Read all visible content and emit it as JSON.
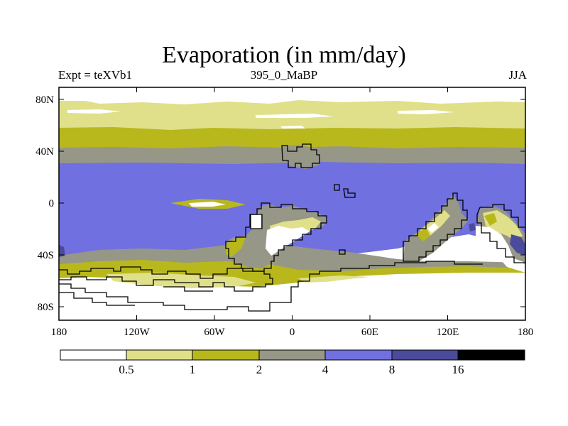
{
  "map": {
    "title": "Evaporation (in mm/day)",
    "left_label": "Expt = teXVb1",
    "center_label": "395_0_MaBP",
    "right_label": "JJA",
    "lat_ticks": [
      "80N",
      "40N",
      "0",
      "40S",
      "80S"
    ],
    "lon_ticks": [
      "180",
      "120W",
      "60W",
      "0",
      "60E",
      "120E",
      "180"
    ]
  },
  "colorbar": {
    "colors": [
      "#ffffff",
      "#e0e08a",
      "#b8b81c",
      "#979788",
      "#7070e0",
      "#4b4b9c",
      "#000000"
    ],
    "labels": [
      "0.5",
      "1",
      "2",
      "4",
      "8",
      "16"
    ]
  }
}
